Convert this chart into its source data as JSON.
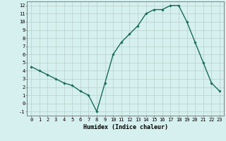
{
  "x": [
    0,
    1,
    2,
    3,
    4,
    5,
    6,
    7,
    8,
    9,
    10,
    11,
    12,
    13,
    14,
    15,
    16,
    17,
    18,
    19,
    20,
    21,
    22,
    23
  ],
  "y": [
    4.5,
    4.0,
    3.5,
    3.0,
    2.5,
    2.2,
    1.5,
    1.0,
    -1.0,
    2.5,
    6.0,
    7.5,
    8.5,
    9.5,
    11.0,
    11.5,
    11.5,
    12.0,
    12.0,
    10.0,
    7.5,
    5.0,
    2.5,
    1.5
  ],
  "line_color": "#1a6b5a",
  "marker": "D",
  "marker_size": 1.8,
  "bg_color": "#d5f0ee",
  "grid_color": "#b8d0cc",
  "xlabel": "Humidex (Indice chaleur)",
  "xlabel_fontsize": 6,
  "yticks": [
    -1,
    0,
    1,
    2,
    3,
    4,
    5,
    6,
    7,
    8,
    9,
    10,
    11,
    12
  ],
  "xticks": [
    0,
    1,
    2,
    3,
    4,
    5,
    6,
    7,
    8,
    9,
    10,
    11,
    12,
    13,
    14,
    15,
    16,
    17,
    18,
    19,
    20,
    21,
    22,
    23
  ],
  "ylim": [
    -1.5,
    12.5
  ],
  "xlim": [
    -0.5,
    23.5
  ],
  "tick_fontsize": 5,
  "line_width": 1.0
}
